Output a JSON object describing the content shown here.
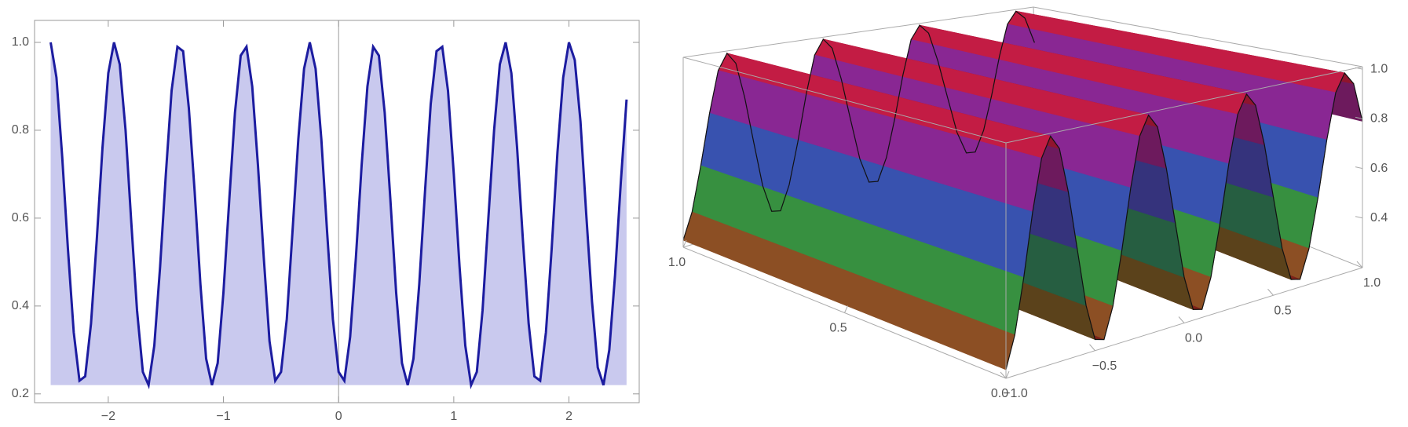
{
  "chart_data": [
    {
      "type": "area",
      "x": [
        -2.5,
        -2.45,
        -2.4,
        -2.35,
        -2.3,
        -2.25,
        -2.2,
        -2.15,
        -2.1,
        -2.05,
        -2,
        -1.95,
        -1.9,
        -1.85,
        -1.8,
        -1.75,
        -1.7,
        -1.65,
        -1.6,
        -1.55,
        -1.5,
        -1.45,
        -1.4,
        -1.35,
        -1.3,
        -1.25,
        -1.2,
        -1.15,
        -1.1,
        -1.05,
        -1,
        -0.95,
        -0.9,
        -0.85,
        -0.8,
        -0.75,
        -0.7,
        -0.65,
        -0.6,
        -0.55,
        -0.5,
        -0.45,
        -0.4,
        -0.35,
        -0.3,
        -0.25,
        -0.2,
        -0.15,
        -0.1,
        -0.05,
        0,
        0.05,
        0.1,
        0.15,
        0.2,
        0.25,
        0.3,
        0.35,
        0.4,
        0.45,
        0.5,
        0.55,
        0.6,
        0.65,
        0.7,
        0.75,
        0.8,
        0.85,
        0.9,
        0.95,
        1,
        1.05,
        1.1,
        1.15,
        1.2,
        1.25,
        1.3,
        1.35,
        1.4,
        1.45,
        1.5,
        1.55,
        1.6,
        1.65,
        1.7,
        1.75,
        1.8,
        1.85,
        1.9,
        1.95,
        2,
        2.05,
        2.1,
        2.15,
        2.2,
        2.25,
        2.3,
        2.35,
        2.4,
        2.45,
        2.5
      ],
      "values": [
        1,
        0.92,
        0.74,
        0.53,
        0.34,
        0.23,
        0.24,
        0.36,
        0.55,
        0.76,
        0.93,
        1,
        0.95,
        0.8,
        0.59,
        0.39,
        0.25,
        0.22,
        0.31,
        0.49,
        0.7,
        0.89,
        0.99,
        0.98,
        0.85,
        0.66,
        0.45,
        0.28,
        0.22,
        0.27,
        0.43,
        0.64,
        0.84,
        0.97,
        0.99,
        0.9,
        0.72,
        0.51,
        0.32,
        0.23,
        0.25,
        0.37,
        0.57,
        0.78,
        0.94,
        1,
        0.94,
        0.78,
        0.57,
        0.37,
        0.25,
        0.23,
        0.33,
        0.51,
        0.72,
        0.9,
        0.99,
        0.97,
        0.84,
        0.64,
        0.43,
        0.27,
        0.22,
        0.28,
        0.45,
        0.66,
        0.86,
        0.98,
        0.99,
        0.89,
        0.7,
        0.49,
        0.31,
        0.22,
        0.25,
        0.39,
        0.6,
        0.8,
        0.95,
        1,
        0.93,
        0.76,
        0.55,
        0.36,
        0.24,
        0.23,
        0.34,
        0.53,
        0.75,
        0.92,
        1,
        0.96,
        0.82,
        0.61,
        0.41,
        0.26,
        0.22,
        0.3,
        0.47,
        0.68,
        0.87
      ],
      "color": "#1c1ca0",
      "fill_color": "#c9c9ee",
      "xlim": [
        -2.64,
        2.61
      ],
      "ylim": [
        0.18,
        1.05
      ],
      "xticks": [
        {
          "value": -2,
          "label": "−2"
        },
        {
          "value": -1,
          "label": "−1"
        },
        0,
        1,
        2
      ],
      "yticks": [
        0.2,
        0.4,
        0.6,
        0.8,
        {
          "value": 1,
          "label": "1.0"
        }
      ]
    },
    {
      "type": "surface",
      "y": [
        -1,
        -0.95,
        -0.9,
        -0.85,
        -0.8,
        -0.75,
        -0.7,
        -0.65,
        -0.6,
        -0.55,
        -0.5,
        -0.45,
        -0.4,
        -0.35,
        -0.3,
        -0.25,
        -0.2,
        -0.15,
        -0.1,
        -0.05,
        0,
        0.05,
        0.1,
        0.15,
        0.2,
        0.25,
        0.3,
        0.35,
        0.4,
        0.45,
        0.5,
        0.55,
        0.6,
        0.65,
        0.7,
        0.75,
        0.8,
        0.85,
        0.9,
        0.95,
        1
      ],
      "z": [
        0.23,
        0.34,
        0.53,
        0.75,
        0.93,
        1,
        0.95,
        0.79,
        0.58,
        0.37,
        0.24,
        0.23,
        0.34,
        0.53,
        0.75,
        0.93,
        1,
        0.95,
        0.79,
        0.58,
        0.37,
        0.24,
        0.23,
        0.34,
        0.53,
        0.75,
        0.93,
        1,
        0.95,
        0.79,
        0.58,
        0.37,
        0.24,
        0.23,
        0.34,
        0.53,
        0.75,
        0.93,
        1,
        0.95,
        0.79
      ],
      "colormap": [
        "#c81820",
        "#3a9a2a",
        "#2a5ab0",
        "#7a2aa8",
        "#d81828"
      ],
      "xlim": [
        0,
        1
      ],
      "ylim": [
        -1,
        1
      ],
      "zlim": [
        0.2,
        1.01
      ],
      "xticks": [
        {
          "value": 0,
          "label": "0.0"
        },
        0.5,
        {
          "value": 1,
          "label": "1.0"
        }
      ],
      "yticks": [
        {
          "value": -1,
          "label": "−1.0"
        },
        {
          "value": -0.5,
          "label": "−0.5"
        },
        {
          "value": 0,
          "label": "0.0"
        },
        0.5,
        {
          "value": 1,
          "label": "1.0"
        }
      ],
      "zticks": [
        0.4,
        0.6,
        0.8,
        {
          "value": 1,
          "label": "1.0"
        }
      ]
    }
  ]
}
